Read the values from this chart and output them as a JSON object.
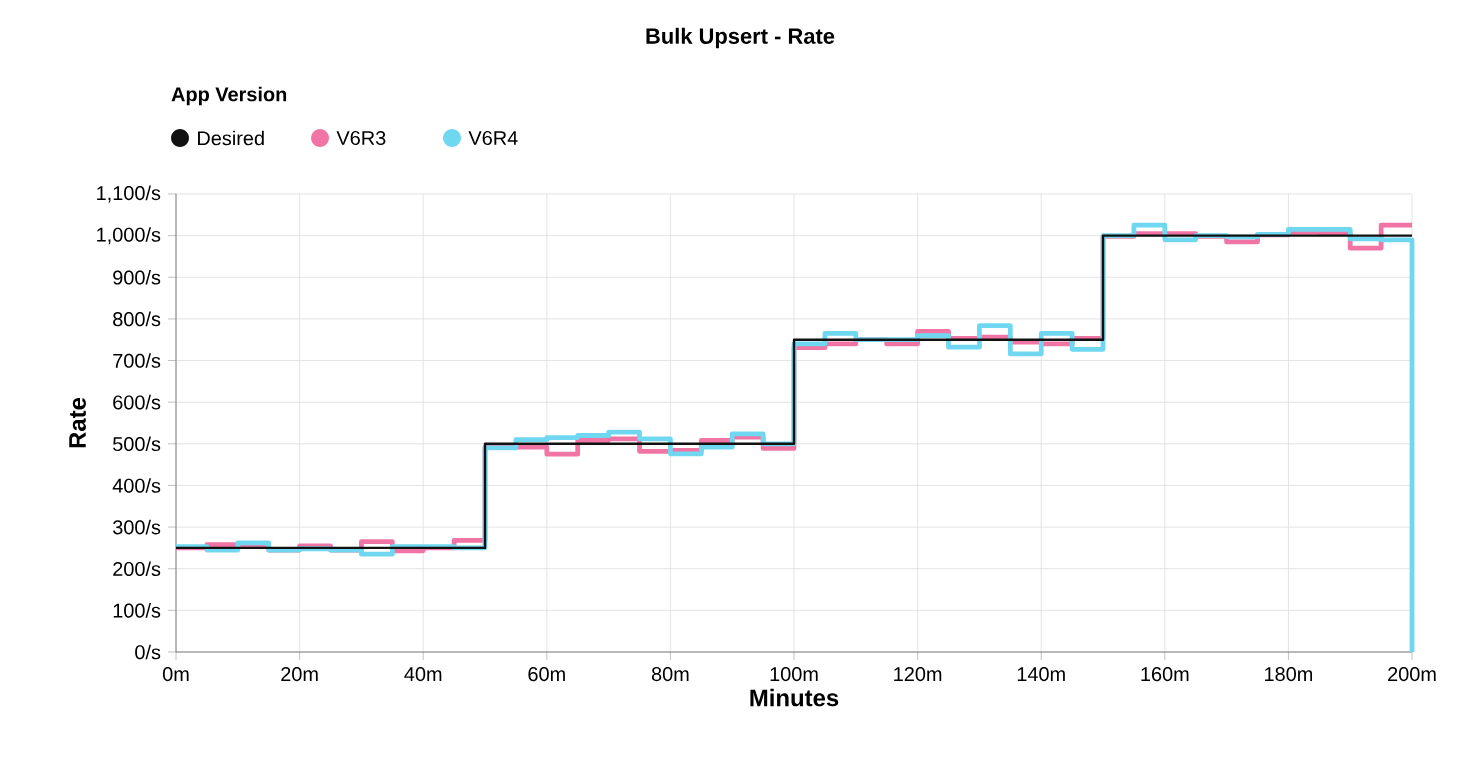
{
  "chart_data": {
    "type": "step",
    "title": "Bulk Upsert - Rate",
    "xlabel": "Minutes",
    "ylabel": "Rate",
    "legend_title": "App Version",
    "legend": "top left",
    "grid": true,
    "marker": "none",
    "line_style": "solid",
    "xlim": [
      0,
      200
    ],
    "xticks": [
      {
        "value": 0,
        "label": "0m"
      },
      {
        "value": 20,
        "label": "20m"
      },
      {
        "value": 40,
        "label": "40m"
      },
      {
        "value": 60,
        "label": "60m"
      },
      {
        "value": 80,
        "label": "80m"
      },
      {
        "value": 100,
        "label": "100m"
      },
      {
        "value": 120,
        "label": "120m"
      },
      {
        "value": 140,
        "label": "140m"
      },
      {
        "value": 160,
        "label": "160m"
      },
      {
        "value": 180,
        "label": "180m"
      },
      {
        "value": 200,
        "label": "200m"
      }
    ],
    "ylim": [
      0,
      1100
    ],
    "yticks": [
      {
        "value": 0,
        "label": "0/s"
      },
      {
        "value": 100,
        "label": "100/s"
      },
      {
        "value": 200,
        "label": "200/s"
      },
      {
        "value": 300,
        "label": "300/s"
      },
      {
        "value": 400,
        "label": "400/s"
      },
      {
        "value": 500,
        "label": "500/s"
      },
      {
        "value": 600,
        "label": "600/s"
      },
      {
        "value": 700,
        "label": "700/s"
      },
      {
        "value": 800,
        "label": "800/s"
      },
      {
        "value": 900,
        "label": "900/s"
      },
      {
        "value": 1000,
        "label": "1,000/s"
      },
      {
        "value": 1100,
        "label": "1,100/s"
      }
    ],
    "series": [
      {
        "name": "V6R3",
        "color": "#f075a5",
        "x": [
          0,
          5,
          10,
          15,
          20,
          25,
          30,
          35,
          40,
          45,
          50,
          55,
          60,
          65,
          70,
          75,
          80,
          85,
          90,
          95,
          100,
          105,
          110,
          115,
          120,
          125,
          130,
          135,
          140,
          145,
          150,
          155,
          160,
          165,
          170,
          175,
          180,
          185,
          190,
          195,
          200
        ],
        "values": [
          250,
          258,
          255,
          245,
          255,
          245,
          265,
          243,
          250,
          268,
          492,
          492,
          475,
          508,
          512,
          482,
          484,
          508,
          516,
          489,
          731,
          740,
          750,
          740,
          770,
          753,
          756,
          744,
          740,
          753,
          998,
          1005,
          1005,
          998,
          985,
          1002,
          1008,
          1005,
          970,
          1025,
          1025
        ]
      },
      {
        "name": "V6R4",
        "color": "#6fd8f0",
        "x": [
          0,
          5,
          10,
          15,
          20,
          25,
          30,
          35,
          40,
          45,
          50,
          55,
          60,
          65,
          70,
          75,
          80,
          85,
          90,
          95,
          100,
          105,
          110,
          115,
          120,
          125,
          130,
          135,
          140,
          145,
          150,
          155,
          160,
          165,
          170,
          175,
          180,
          185,
          190,
          195,
          200
        ],
        "values": [
          253,
          245,
          262,
          245,
          248,
          245,
          235,
          253,
          253,
          250,
          490,
          510,
          515,
          520,
          528,
          512,
          476,
          492,
          524,
          500,
          740,
          765,
          750,
          750,
          760,
          732,
          784,
          716,
          765,
          727,
          1000,
          1025,
          990,
          1000,
          997,
          1003,
          1015,
          1015,
          992,
          990,
          0
        ]
      },
      {
        "name": "Desired",
        "color": "#111111",
        "x": [
          0,
          50,
          100,
          150,
          200
        ],
        "values": [
          250,
          500,
          750,
          1000,
          1000
        ]
      }
    ]
  }
}
